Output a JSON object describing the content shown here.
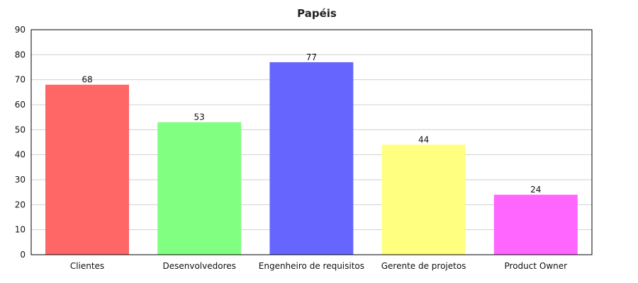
{
  "chart_data": {
    "type": "bar",
    "title": "Papéis",
    "xlabel": "",
    "ylabel": "",
    "ylim": [
      0,
      90
    ],
    "yticks": [
      0,
      10,
      20,
      30,
      40,
      50,
      60,
      70,
      80,
      90
    ],
    "grid": true,
    "legend": "none",
    "categories": [
      "Clientes",
      "Desenvolvedores",
      "Engenheiro de requisitos",
      "Gerente de projetos",
      "Product Owner"
    ],
    "values": [
      68,
      53,
      77,
      44,
      24
    ],
    "colors": [
      "#ff6666",
      "#80ff80",
      "#6666ff",
      "#ffff80",
      "#ff66ff"
    ]
  }
}
